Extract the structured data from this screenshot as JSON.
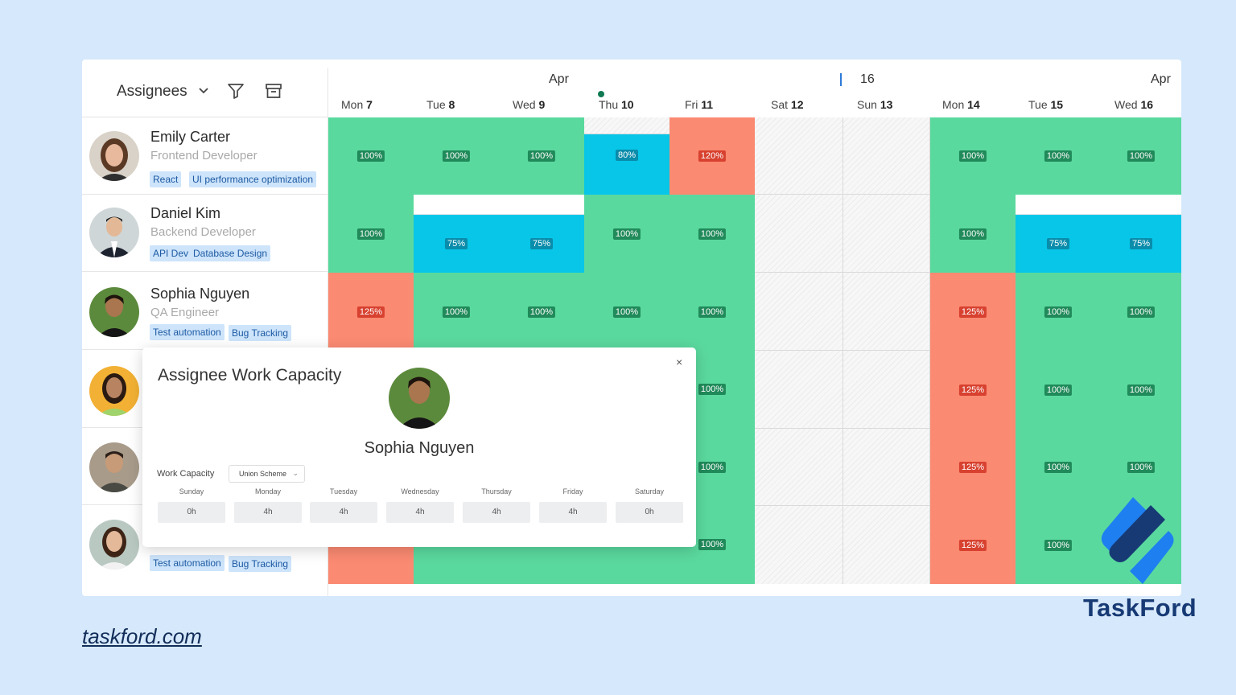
{
  "toolbar": {
    "assignees_label": "Assignees"
  },
  "calendar": {
    "months": [
      {
        "label": "Apr"
      },
      {
        "label": "16"
      },
      {
        "label": "Apr"
      }
    ],
    "days": [
      {
        "name": "Mon",
        "num": "7"
      },
      {
        "name": "Tue",
        "num": "8"
      },
      {
        "name": "Wed",
        "num": "9"
      },
      {
        "name": "Thu",
        "num": "10"
      },
      {
        "name": "Fri",
        "num": "11"
      },
      {
        "name": "Sat",
        "num": "12"
      },
      {
        "name": "Sun",
        "num": "13"
      },
      {
        "name": "Mon",
        "num": "14"
      },
      {
        "name": "Tue",
        "num": "15"
      },
      {
        "name": "Wed",
        "num": "16"
      }
    ]
  },
  "assignees": [
    {
      "name": "Emily Carter",
      "role": "Frontend Developer",
      "tags": [
        "React",
        "UI performance optimization"
      ]
    },
    {
      "name": "Daniel Kim",
      "role": "Backend Developer",
      "tags": [
        "API Dev",
        "Database Design"
      ]
    },
    {
      "name": "Sophia Nguyen",
      "role": "QA Engineer",
      "tags": [
        "Test automation",
        "Bug Tracking"
      ]
    },
    {
      "name": "",
      "role": "",
      "tags": []
    },
    {
      "name": "",
      "role": "",
      "tags": []
    },
    {
      "name": "",
      "role": "",
      "tags": [
        "Test automation",
        "Bug Tracking"
      ]
    }
  ],
  "capacity_grid": [
    [
      "100%",
      "100%",
      "100%",
      "80%",
      "120%",
      "",
      "",
      "100%",
      "100%",
      "100%"
    ],
    [
      "100%",
      "75%",
      "75%",
      "100%",
      "100%",
      "",
      "",
      "100%",
      "75%",
      "75%"
    ],
    [
      "125%",
      "100%",
      "100%",
      "100%",
      "100%",
      "",
      "",
      "125%",
      "100%",
      "100%"
    ],
    [
      "",
      "",
      "",
      "",
      "100%",
      "",
      "",
      "125%",
      "100%",
      "100%"
    ],
    [
      "",
      "",
      "",
      "",
      "100%",
      "",
      "",
      "125%",
      "100%",
      "100%"
    ],
    [
      "",
      "",
      "",
      "",
      "100%",
      "",
      "",
      "125%",
      "100%",
      ""
    ]
  ],
  "popup": {
    "title": "Assignee Work Capacity",
    "close": "×",
    "name": "Sophia Nguyen",
    "work_capacity_label": "Work Capacity",
    "scheme": "Union Scheme",
    "days": [
      {
        "label": "Sunday",
        "hours": "0h"
      },
      {
        "label": "Monday",
        "hours": "4h"
      },
      {
        "label": "Tuesday",
        "hours": "4h"
      },
      {
        "label": "Wednesday",
        "hours": "4h"
      },
      {
        "label": "Thursday",
        "hours": "4h"
      },
      {
        "label": "Friday",
        "hours": "4h"
      },
      {
        "label": "Saturday",
        "hours": "0h"
      }
    ]
  },
  "footer": {
    "site": "taskford.com",
    "brand": "TaskFord"
  },
  "colors": {
    "full": "#5ad99e",
    "under": "#07c6e8",
    "over": "#fb8a72",
    "tag_bg": "#cde4fb",
    "brand": "#173a75"
  },
  "icons": [
    "chevron-down-icon",
    "filter-icon",
    "archive-icon",
    "close-icon",
    "taskford-logo-icon"
  ]
}
